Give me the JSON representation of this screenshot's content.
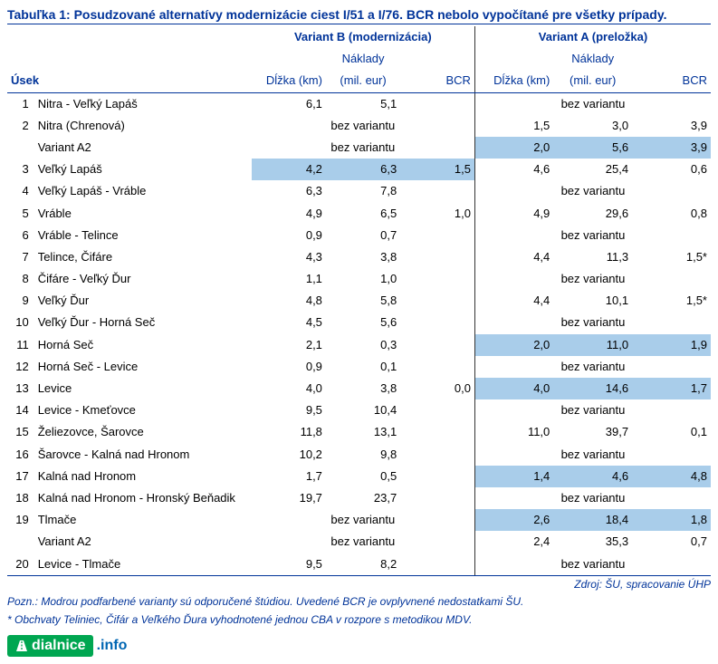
{
  "title": "Tabuľka 1: Posudzované alternatívy modernizácie ciest I/51 a I/76. BCR nebolo vypočítané pre všetky prípady.",
  "headers": {
    "usek": "Úsek",
    "groupB": "Variant B (modernizácia)",
    "groupA": "Variant A (preložka)",
    "dlzka": "Dĺžka (km)",
    "naklady": "Náklady\n(mil. eur)",
    "bcr": "BCR"
  },
  "bez": "bez variantu",
  "source": "Zdroj: ŠU, spracovanie ÚHP",
  "footnote1": "Pozn.: Modrou podfarbené varianty sú odporučené štúdiou. Uvedené BCR je ovplyvnené nedostatkami ŠU.",
  "footnote2": "* Obchvaty Teliniec, Čifár a Veľkého Ďura vyhodnotené jednou CBA v rozpore s metodikou MDV.",
  "logo": {
    "brand": "dialnice",
    "suffix": ".info"
  },
  "colors": {
    "highlight": "#a9cdea",
    "heading": "#003399",
    "logo_green": "#00a651",
    "logo_blue": "#0066b3"
  },
  "rows": [
    {
      "idx": "1",
      "name": "Nitra - Veľký Lapáš",
      "B": {
        "d": "6,1",
        "n": "5,1",
        "bcr": ""
      },
      "A": "bez"
    },
    {
      "idx": "2",
      "name": "Nitra (Chrenová)",
      "B": "bez",
      "A": {
        "d": "1,5",
        "n": "3,0",
        "bcr": "3,9"
      }
    },
    {
      "idx": "",
      "name": "Variant A2",
      "B": "bez",
      "A": {
        "d": "2,0",
        "n": "5,6",
        "bcr": "3,9",
        "hl": true
      }
    },
    {
      "idx": "3",
      "name": "Veľký Lapáš",
      "B": {
        "d": "4,2",
        "n": "6,3",
        "bcr": "1,5",
        "hl": true
      },
      "A": {
        "d": "4,6",
        "n": "25,4",
        "bcr": "0,6"
      }
    },
    {
      "idx": "4",
      "name": "Veľký Lapáš - Vráble",
      "B": {
        "d": "6,3",
        "n": "7,8",
        "bcr": ""
      },
      "A": "bez"
    },
    {
      "idx": "5",
      "name": "Vráble",
      "B": {
        "d": "4,9",
        "n": "6,5",
        "bcr": "1,0"
      },
      "A": {
        "d": "4,9",
        "n": "29,6",
        "bcr": "0,8"
      }
    },
    {
      "idx": "6",
      "name": "Vráble - Telince",
      "B": {
        "d": "0,9",
        "n": "0,7",
        "bcr": ""
      },
      "A": "bez"
    },
    {
      "idx": "7",
      "name": "Telince, Čifáre",
      "B": {
        "d": "4,3",
        "n": "3,8",
        "bcr": ""
      },
      "A": {
        "d": "4,4",
        "n": "11,3",
        "bcr": "1,5*"
      }
    },
    {
      "idx": "8",
      "name": "Čifáre - Veľký Ďur",
      "B": {
        "d": "1,1",
        "n": "1,0",
        "bcr": ""
      },
      "A": "bez"
    },
    {
      "idx": "9",
      "name": "Veľký Ďur",
      "B": {
        "d": "4,8",
        "n": "5,8",
        "bcr": ""
      },
      "A": {
        "d": "4,4",
        "n": "10,1",
        "bcr": "1,5*"
      }
    },
    {
      "idx": "10",
      "name": "Veľký Ďur - Horná Seč",
      "B": {
        "d": "4,5",
        "n": "5,6",
        "bcr": ""
      },
      "A": "bez"
    },
    {
      "idx": "11",
      "name": "Horná Seč",
      "B": {
        "d": "2,1",
        "n": "0,3",
        "bcr": ""
      },
      "A": {
        "d": "2,0",
        "n": "11,0",
        "bcr": "1,9",
        "hl": true
      }
    },
    {
      "idx": "12",
      "name": "Horná Seč - Levice",
      "B": {
        "d": "0,9",
        "n": "0,1",
        "bcr": ""
      },
      "A": "bez"
    },
    {
      "idx": "13",
      "name": "Levice",
      "B": {
        "d": "4,0",
        "n": "3,8",
        "bcr": "0,0"
      },
      "A": {
        "d": "4,0",
        "n": "14,6",
        "bcr": "1,7",
        "hl": true
      }
    },
    {
      "idx": "14",
      "name": "Levice - Kmeťovce",
      "B": {
        "d": "9,5",
        "n": "10,4",
        "bcr": ""
      },
      "A": "bez"
    },
    {
      "idx": "15",
      "name": "Želiezovce, Šarovce",
      "B": {
        "d": "11,8",
        "n": "13,1",
        "bcr": ""
      },
      "A": {
        "d": "11,0",
        "n": "39,7",
        "bcr": "0,1"
      }
    },
    {
      "idx": "16",
      "name": "Šarovce - Kalná nad Hronom",
      "B": {
        "d": "10,2",
        "n": "9,8",
        "bcr": ""
      },
      "A": "bez"
    },
    {
      "idx": "17",
      "name": "Kalná nad Hronom",
      "B": {
        "d": "1,7",
        "n": "0,5",
        "bcr": ""
      },
      "A": {
        "d": "1,4",
        "n": "4,6",
        "bcr": "4,8",
        "hl": true
      }
    },
    {
      "idx": "18",
      "name": "Kalná nad Hronom - Hronský Beňadik",
      "B": {
        "d": "19,7",
        "n": "23,7",
        "bcr": ""
      },
      "A": "bez"
    },
    {
      "idx": "19",
      "name": "Tlmače",
      "B": "bez",
      "A": {
        "d": "2,6",
        "n": "18,4",
        "bcr": "1,8",
        "hl": true
      }
    },
    {
      "idx": "",
      "name": "Variant A2",
      "B": "bez",
      "A": {
        "d": "2,4",
        "n": "35,3",
        "bcr": "0,7"
      }
    },
    {
      "idx": "20",
      "name": "Levice - Tlmače",
      "B": {
        "d": "9,5",
        "n": "8,2",
        "bcr": ""
      },
      "A": "bez"
    }
  ]
}
